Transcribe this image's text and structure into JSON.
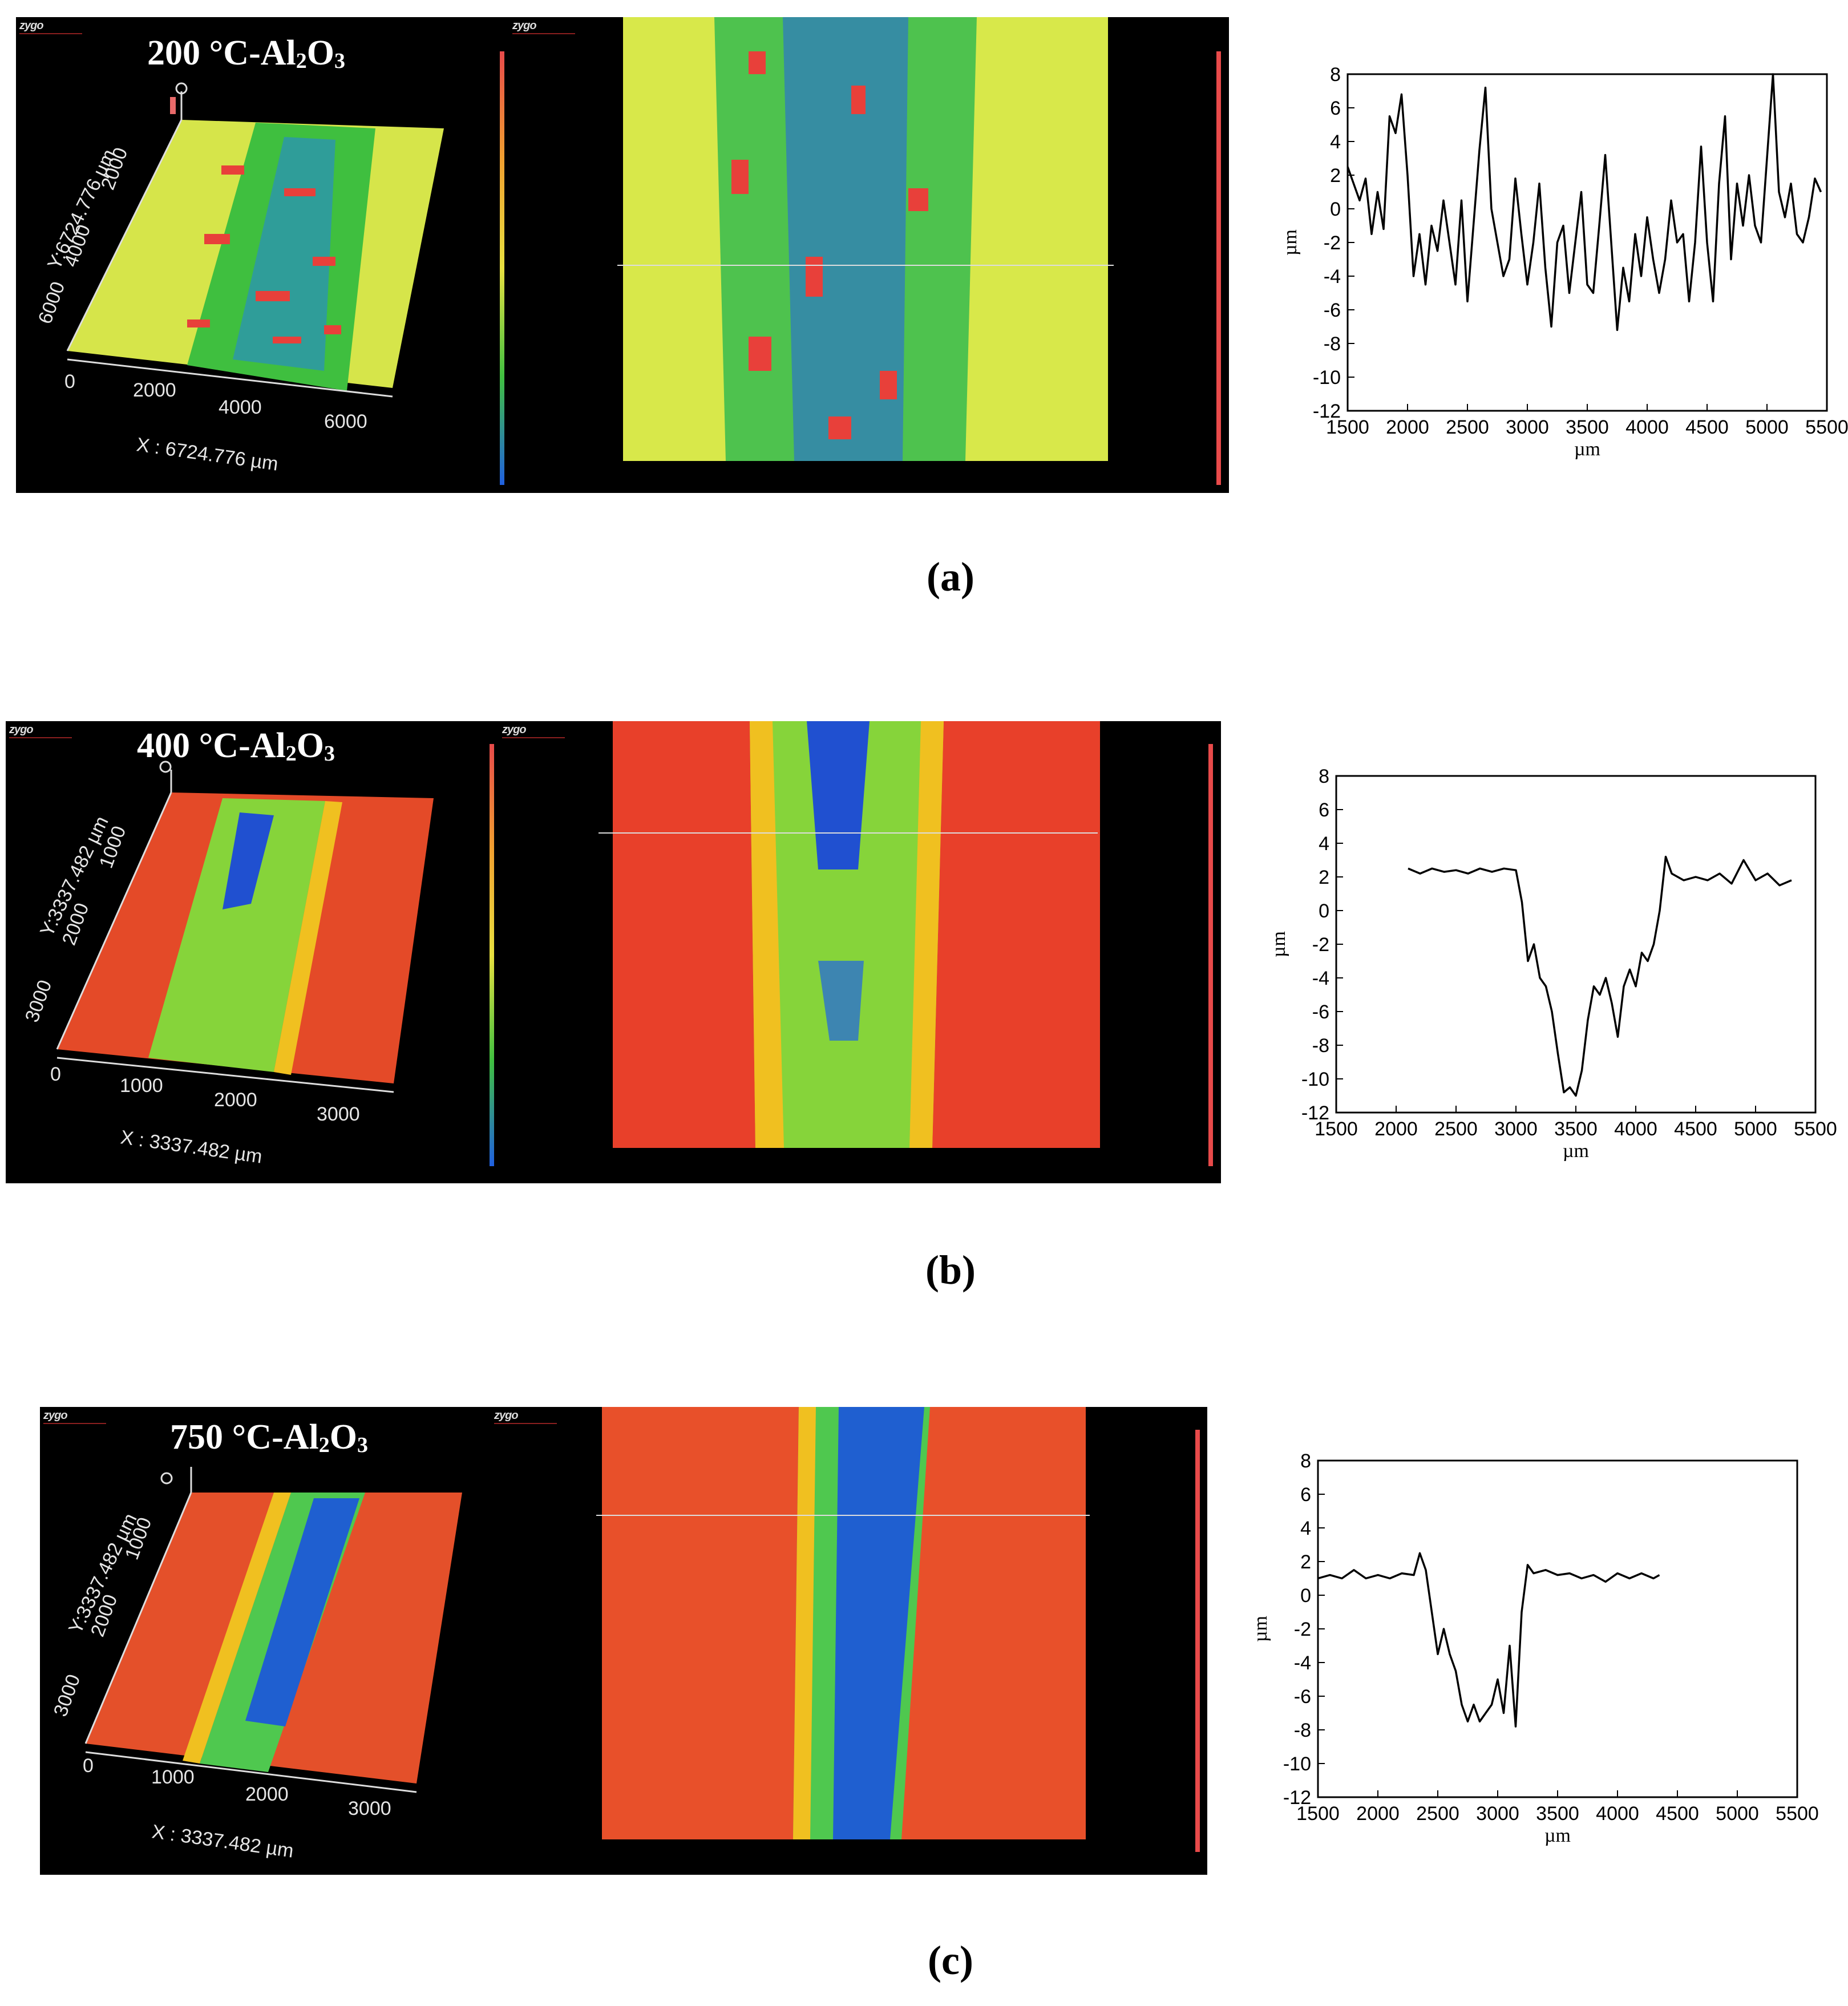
{
  "figure": {
    "panels": [
      {
        "caption": "(a)",
        "title_main": "200 °C-Al",
        "title_sub1": "2",
        "title_mid": "O",
        "title_sub2": "3",
        "x_extent_label": "X : 6724.776 µm",
        "y_extent_label": "Y:6724.776 µm",
        "x_ticks": [
          "0",
          "2000",
          "4000",
          "6000"
        ],
        "y_ticks": [
          "2000",
          "4000",
          "6000"
        ],
        "brand": "zygo",
        "colors": {
          "surface": "#d7e84a",
          "track": "#3fbf3f",
          "deep": "#1f5fd0",
          "high": "#e8403a"
        }
      },
      {
        "caption": "(b)",
        "title_main": "400 °C-Al",
        "title_sub1": "2",
        "title_mid": "O",
        "title_sub2": "3",
        "x_extent_label": "X : 3337.482 µm",
        "y_extent_label": "Y:3337.482 µm",
        "x_ticks": [
          "0",
          "1000",
          "2000",
          "3000"
        ],
        "y_ticks": [
          "1000",
          "2000",
          "3000"
        ],
        "brand": "zygo",
        "colors": {
          "surface": "#e84a2a",
          "track": "#6fd13a",
          "deep": "#1f5fd0",
          "high": "#f0c020"
        }
      },
      {
        "caption": "(c)",
        "title_main": "750 °C-Al",
        "title_sub1": "2",
        "title_mid": "O",
        "title_sub2": "3",
        "x_extent_label": "X : 3337.482 µm",
        "y_extent_label": "Y:3337.482 µm",
        "x_ticks": [
          "0",
          "1000",
          "2000",
          "3000"
        ],
        "y_ticks": [
          "1000",
          "2000",
          "3000"
        ],
        "brand": "zygo",
        "colors": {
          "surface": "#e8502a",
          "track": "#4fc84f",
          "deep": "#1f5fd0",
          "high": "#f0c020"
        }
      }
    ]
  },
  "chart_data": [
    {
      "type": "line",
      "xlabel": "µm",
      "ylabel": "µm",
      "xlim": [
        1500,
        5500
      ],
      "ylim": [
        -12,
        8
      ],
      "xticks": [
        1500,
        2000,
        2500,
        3000,
        3500,
        4000,
        4500,
        5000,
        5500
      ],
      "yticks": [
        -12,
        -10,
        -8,
        -6,
        -4,
        -2,
        0,
        2,
        4,
        6,
        8
      ],
      "series": [
        {
          "x": [
            1500,
            1550,
            1600,
            1650,
            1700,
            1750,
            1800,
            1850,
            1900,
            1950,
            2000,
            2050,
            2100,
            2150,
            2200,
            2250,
            2300,
            2350,
            2400,
            2450,
            2500,
            2550,
            2600,
            2650,
            2700,
            2750,
            2800,
            2850,
            2900,
            2950,
            3000,
            3050,
            3100,
            3150,
            3200,
            3250,
            3300,
            3350,
            3400,
            3450,
            3500,
            3550,
            3600,
            3650,
            3700,
            3750,
            3800,
            3850,
            3900,
            3950,
            4000,
            4050,
            4100,
            4150,
            4200,
            4250,
            4300,
            4350,
            4400,
            4450,
            4500,
            4550,
            4600,
            4650,
            4700,
            4750,
            4800,
            4850,
            4900,
            4950,
            5000,
            5050,
            5100,
            5150,
            5200,
            5250,
            5300,
            5350,
            5400,
            5450
          ],
          "y": [
            2.5,
            1.5,
            0.5,
            1.8,
            -1.5,
            1.0,
            -1.2,
            5.5,
            4.5,
            6.8,
            2.0,
            -4.0,
            -1.5,
            -4.5,
            -1.0,
            -2.5,
            0.5,
            -2.0,
            -4.5,
            0.5,
            -5.5,
            -1.0,
            3.5,
            7.2,
            0.0,
            -2.0,
            -4.0,
            -3.0,
            1.8,
            -1.5,
            -4.5,
            -2.0,
            1.5,
            -3.5,
            -7.0,
            -2.0,
            -1.0,
            -5.0,
            -2.0,
            1.0,
            -4.5,
            -5.0,
            -1.0,
            3.2,
            -2.0,
            -7.2,
            -3.5,
            -5.5,
            -1.5,
            -4.0,
            -0.5,
            -3.0,
            -5.0,
            -3.0,
            0.5,
            -2.0,
            -1.5,
            -5.5,
            -2.0,
            3.7,
            -2.0,
            -5.5,
            1.5,
            5.5,
            -3.0,
            1.5,
            -1.0,
            2.0,
            -1.0,
            -2.0,
            3.0,
            8.0,
            1.0,
            -0.5,
            1.5,
            -1.5,
            -2.0,
            -0.5,
            1.8,
            1.0
          ]
        }
      ]
    },
    {
      "type": "line",
      "xlabel": "µm",
      "ylabel": "µm",
      "xlim": [
        1500,
        5500
      ],
      "ylim": [
        -12,
        8
      ],
      "xticks": [
        1500,
        2000,
        2500,
        3000,
        3500,
        4000,
        4500,
        5000,
        5500
      ],
      "yticks": [
        -12,
        -10,
        -8,
        -6,
        -4,
        -2,
        0,
        2,
        4,
        6,
        8
      ],
      "series": [
        {
          "x": [
            2100,
            2200,
            2300,
            2400,
            2500,
            2600,
            2700,
            2800,
            2900,
            3000,
            3050,
            3100,
            3150,
            3200,
            3250,
            3300,
            3350,
            3400,
            3450,
            3500,
            3550,
            3600,
            3650,
            3700,
            3750,
            3800,
            3850,
            3900,
            3950,
            4000,
            4050,
            4100,
            4150,
            4200,
            4250,
            4300,
            4350,
            4400,
            4500,
            4600,
            4700,
            4800,
            4900,
            5000,
            5100,
            5200,
            5300
          ],
          "y": [
            2.5,
            2.2,
            2.5,
            2.3,
            2.4,
            2.2,
            2.5,
            2.3,
            2.5,
            2.4,
            0.5,
            -3.0,
            -2.0,
            -4.0,
            -4.5,
            -6.0,
            -8.5,
            -10.8,
            -10.5,
            -11.0,
            -9.5,
            -6.5,
            -4.5,
            -5.0,
            -4.0,
            -5.5,
            -7.5,
            -4.5,
            -3.5,
            -4.5,
            -2.5,
            -3.0,
            -2.0,
            0.0,
            3.2,
            2.2,
            2.0,
            1.8,
            2.0,
            1.8,
            2.2,
            1.6,
            3.0,
            1.8,
            2.2,
            1.5,
            1.8
          ]
        }
      ]
    },
    {
      "type": "line",
      "xlabel": "µm",
      "ylabel": "µm",
      "xlim": [
        1500,
        5500
      ],
      "ylim": [
        -12,
        8
      ],
      "xticks": [
        1500,
        2000,
        2500,
        3000,
        3500,
        4000,
        4500,
        5000,
        5500
      ],
      "yticks": [
        -12,
        -10,
        -8,
        -6,
        -4,
        -2,
        0,
        2,
        4,
        6,
        8
      ],
      "series": [
        {
          "x": [
            1500,
            1600,
            1700,
            1800,
            1900,
            2000,
            2100,
            2200,
            2300,
            2350,
            2400,
            2450,
            2500,
            2550,
            2600,
            2650,
            2700,
            2750,
            2800,
            2850,
            2900,
            2950,
            3000,
            3050,
            3100,
            3150,
            3200,
            3250,
            3300,
            3400,
            3500,
            3600,
            3700,
            3800,
            3900,
            4000,
            4100,
            4200,
            4300,
            4350
          ],
          "y": [
            1.0,
            1.2,
            1.0,
            1.5,
            1.0,
            1.2,
            1.0,
            1.3,
            1.2,
            2.5,
            1.5,
            -1.0,
            -3.5,
            -2.0,
            -3.5,
            -4.5,
            -6.5,
            -7.5,
            -6.5,
            -7.5,
            -7.0,
            -6.5,
            -5.0,
            -7.0,
            -3.0,
            -7.8,
            -1.0,
            1.8,
            1.3,
            1.5,
            1.2,
            1.3,
            1.0,
            1.2,
            0.8,
            1.3,
            1.0,
            1.3,
            1.0,
            1.2
          ]
        }
      ]
    }
  ]
}
